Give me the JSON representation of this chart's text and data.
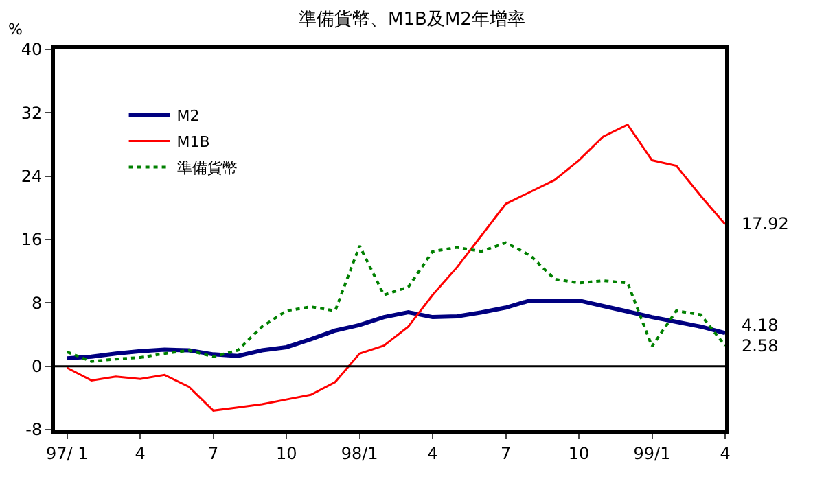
{
  "chart_data": {
    "type": "line",
    "title": "準備貨幣、M1B及M2年增率",
    "ylabel": "%",
    "categories": [
      "97/ 1",
      null,
      null,
      "4",
      null,
      null,
      "7",
      null,
      null,
      "10",
      null,
      null,
      "98/1",
      null,
      null,
      "4",
      null,
      null,
      "7",
      null,
      null,
      "10",
      null,
      null,
      "99/1",
      null,
      null,
      "4"
    ],
    "ylim": [
      -8,
      40
    ],
    "yticks": [
      -8,
      0,
      8,
      16,
      24,
      32,
      40
    ],
    "legend": "top left",
    "ref_lines": [
      {
        "axis": "y",
        "value": 0,
        "color": "#000000"
      }
    ],
    "series": [
      {
        "name": "M2",
        "color": "#000080",
        "line_style": "solid",
        "values": [
          1.0,
          1.2,
          1.6,
          1.9,
          2.1,
          2.0,
          1.5,
          1.3,
          2.0,
          2.4,
          3.4,
          4.5,
          5.2,
          6.2,
          6.8,
          6.2,
          6.3,
          6.8,
          7.4,
          8.3,
          8.3,
          8.3,
          7.6,
          6.9,
          6.2,
          5.6,
          5.0,
          4.18
        ],
        "value_labels": [
          null,
          null,
          null,
          null,
          null,
          null,
          null,
          null,
          null,
          null,
          null,
          null,
          null,
          null,
          null,
          null,
          null,
          null,
          null,
          null,
          null,
          null,
          null,
          null,
          null,
          null,
          null,
          "4.18"
        ]
      },
      {
        "name": "M1B",
        "color": "#ff0000",
        "line_style": "solid",
        "values": [
          -0.2,
          -1.8,
          -1.3,
          -1.6,
          -1.1,
          -2.6,
          -5.6,
          -5.2,
          -4.8,
          -4.2,
          -3.6,
          -2.0,
          1.6,
          2.6,
          5.0,
          9.0,
          12.5,
          16.5,
          20.5,
          22.0,
          23.5,
          26.0,
          29.0,
          30.5,
          26.0,
          25.3,
          21.5,
          17.92
        ],
        "value_labels": [
          null,
          null,
          null,
          null,
          null,
          null,
          null,
          null,
          null,
          null,
          null,
          null,
          null,
          null,
          null,
          null,
          null,
          null,
          null,
          null,
          null,
          null,
          null,
          null,
          null,
          null,
          null,
          "17.92"
        ]
      },
      {
        "name": "準備貨幣",
        "color": "#008000",
        "line_style": "dotted",
        "values": [
          1.8,
          0.6,
          0.9,
          1.1,
          1.6,
          2.0,
          1.2,
          2.0,
          5.0,
          7.0,
          7.5,
          7.0,
          15.2,
          9.0,
          10.0,
          14.5,
          15.0,
          14.5,
          15.6,
          14.0,
          11.0,
          10.5,
          10.8,
          10.5,
          2.5,
          7.0,
          6.5,
          2.58
        ],
        "value_labels": [
          null,
          null,
          null,
          null,
          null,
          null,
          null,
          null,
          null,
          null,
          null,
          null,
          null,
          null,
          null,
          null,
          null,
          null,
          null,
          null,
          null,
          null,
          null,
          null,
          null,
          null,
          null,
          "2.58"
        ]
      }
    ]
  }
}
